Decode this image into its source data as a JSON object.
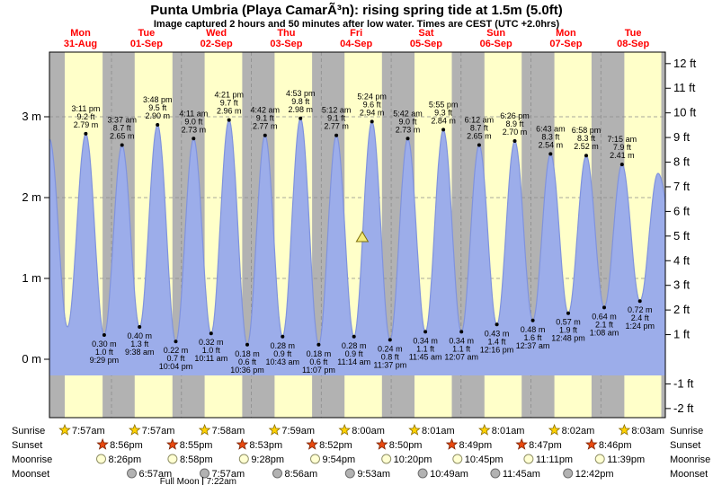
{
  "chart_data": {
    "type": "area",
    "title": "Punta Umbria (Playa CamarÃ³n): rising  spring tide at 1.5m (5.0ft)",
    "subtitle": "Image captured 2 hours and 50 minutes after low water. Times are CEST (UTC +2.0hrs)",
    "y_range_m": [
      -0.72,
      3.8
    ],
    "grid": "dashed",
    "days": [
      {
        "name": "Mon",
        "date": "31-Aug"
      },
      {
        "name": "Tue",
        "date": "01-Sep"
      },
      {
        "name": "Wed",
        "date": "02-Sep"
      },
      {
        "name": "Thu",
        "date": "03-Sep"
      },
      {
        "name": "Fri",
        "date": "04-Sep"
      },
      {
        "name": "Sat",
        "date": "05-Sep"
      },
      {
        "name": "Sun",
        "date": "06-Sep"
      },
      {
        "name": "Mon",
        "date": "07-Sep"
      },
      {
        "name": "Tue",
        "date": "08-Sep"
      }
    ],
    "y_left_ticks": [
      {
        "value": 3,
        "label": "3 m"
      },
      {
        "value": 2,
        "label": "2 m"
      },
      {
        "value": 1,
        "label": "1 m"
      },
      {
        "value": 0,
        "label": "0 m"
      }
    ],
    "y_right_ticks": [
      {
        "value": 12,
        "label": "12 ft"
      },
      {
        "value": 11,
        "label": "11 ft"
      },
      {
        "value": 10,
        "label": "10 ft"
      },
      {
        "value": 9,
        "label": "9 ft"
      },
      {
        "value": 8,
        "label": "8 ft"
      },
      {
        "value": 7,
        "label": "7 ft"
      },
      {
        "value": 6,
        "label": "6 ft"
      },
      {
        "value": 5,
        "label": "5 ft"
      },
      {
        "value": 4,
        "label": "4 ft"
      },
      {
        "value": 3,
        "label": "3 ft"
      },
      {
        "value": 2,
        "label": "2 ft"
      },
      {
        "value": 1,
        "label": "1 ft"
      },
      {
        "value": -1,
        "label": "-1 ft"
      },
      {
        "value": -2,
        "label": "-2 ft"
      }
    ],
    "tide_events": [
      {
        "type": "high",
        "day": 0,
        "time": "3:11 pm",
        "m": 2.79,
        "m_label": "2.79 m",
        "ft_label": "9.2 ft"
      },
      {
        "type": "low",
        "day": 0,
        "time": "9:29 pm",
        "m": 0.3,
        "m_label": "0.30 m",
        "ft_label": "1.0 ft"
      },
      {
        "type": "high",
        "day": 1,
        "time": "3:37 am",
        "m": 2.65,
        "m_label": "2.65 m",
        "ft_label": "8.7 ft"
      },
      {
        "type": "low",
        "day": 1,
        "time": "9:38 am",
        "m": 0.4,
        "m_label": "0.40 m",
        "ft_label": "1.3 ft"
      },
      {
        "type": "high",
        "day": 1,
        "time": "3:48 pm",
        "m": 2.9,
        "m_label": "2.90 m",
        "ft_label": "9.5 ft"
      },
      {
        "type": "low",
        "day": 1,
        "time": "10:04 pm",
        "m": 0.22,
        "m_label": "0.22 m",
        "ft_label": "0.7 ft"
      },
      {
        "type": "high",
        "day": 2,
        "time": "4:11 am",
        "m": 2.73,
        "m_label": "2.73 m",
        "ft_label": "9.0 ft"
      },
      {
        "type": "low",
        "day": 2,
        "time": "10:11 am",
        "m": 0.32,
        "m_label": "0.32 m",
        "ft_label": "1.0 ft"
      },
      {
        "type": "high",
        "day": 2,
        "time": "4:21 pm",
        "m": 2.96,
        "m_label": "2.96 m",
        "ft_label": "9.7 ft"
      },
      {
        "type": "low",
        "day": 2,
        "time": "10:36 pm",
        "m": 0.18,
        "m_label": "0.18 m",
        "ft_label": "0.6 ft"
      },
      {
        "type": "high",
        "day": 3,
        "time": "4:42 am",
        "m": 2.77,
        "m_label": "2.77 m",
        "ft_label": "9.1 ft"
      },
      {
        "type": "low",
        "day": 3,
        "time": "10:43 am",
        "m": 0.28,
        "m_label": "0.28 m",
        "ft_label": "0.9 ft"
      },
      {
        "type": "high",
        "day": 3,
        "time": "4:53 pm",
        "m": 2.98,
        "m_label": "2.98 m",
        "ft_label": "9.8 ft"
      },
      {
        "type": "low",
        "day": 3,
        "time": "11:07 pm",
        "m": 0.18,
        "m_label": "0.18 m",
        "ft_label": "0.6 ft"
      },
      {
        "type": "high",
        "day": 4,
        "time": "5:12 am",
        "m": 2.77,
        "m_label": "2.77 m",
        "ft_label": "9.1 ft"
      },
      {
        "type": "low",
        "day": 4,
        "time": "11:14 am",
        "m": 0.28,
        "m_label": "0.28 m",
        "ft_label": "0.9 ft"
      },
      {
        "type": "high",
        "day": 4,
        "time": "5:24 pm",
        "m": 2.94,
        "m_label": "2.94 m",
        "ft_label": "9.6 ft"
      },
      {
        "type": "low",
        "day": 4,
        "time": "11:37 pm",
        "m": 0.24,
        "m_label": "0.24 m",
        "ft_label": "0.8 ft"
      },
      {
        "type": "high",
        "day": 5,
        "time": "5:42 am",
        "m": 2.73,
        "m_label": "2.73 m",
        "ft_label": "9.0 ft"
      },
      {
        "type": "low",
        "day": 5,
        "time": "11:45 am",
        "m": 0.34,
        "m_label": "0.34 m",
        "ft_label": "1.1 ft"
      },
      {
        "type": "high",
        "day": 5,
        "time": "5:55 pm",
        "m": 2.84,
        "m_label": "2.84 m",
        "ft_label": "9.3 ft"
      },
      {
        "type": "low",
        "day": 6,
        "time": "12:07 am",
        "m": 0.34,
        "m_label": "0.34 m",
        "ft_label": "1.1 ft"
      },
      {
        "type": "high",
        "day": 6,
        "time": "6:12 am",
        "m": 2.65,
        "m_label": "2.65 m",
        "ft_label": "8.7 ft"
      },
      {
        "type": "low",
        "day": 6,
        "time": "12:16 pm",
        "m": 0.43,
        "m_label": "0.43 m",
        "ft_label": "1.4 ft"
      },
      {
        "type": "high",
        "day": 6,
        "time": "6:26 pm",
        "m": 2.7,
        "m_label": "2.70 m",
        "ft_label": "8.9 ft"
      },
      {
        "type": "low",
        "day": 7,
        "time": "12:37 am",
        "m": 0.48,
        "m_label": "0.48 m",
        "ft_label": "1.6 ft"
      },
      {
        "type": "high",
        "day": 7,
        "time": "6:43 am",
        "m": 2.54,
        "m_label": "2.54 m",
        "ft_label": "8.3 ft"
      },
      {
        "type": "low",
        "day": 7,
        "time": "12:48 pm",
        "m": 0.57,
        "m_label": "0.57 m",
        "ft_label": "1.9 ft"
      },
      {
        "type": "high",
        "day": 7,
        "time": "6:58 pm",
        "m": 2.52,
        "m_label": "2.52 m",
        "ft_label": "8.3 ft"
      },
      {
        "type": "low",
        "day": 8,
        "time": "1:08 am",
        "m": 0.64,
        "m_label": "0.64 m",
        "ft_label": "2.1 ft"
      },
      {
        "type": "high",
        "day": 8,
        "time": "7:15 am",
        "m": 2.41,
        "m_label": "2.41 m",
        "ft_label": "7.9 ft"
      },
      {
        "type": "low",
        "day": 8,
        "time": "1:24 pm",
        "m": 0.72,
        "m_label": "0.72 m",
        "ft_label": "2.4 ft"
      }
    ],
    "current_marker": {
      "shape": "triangle",
      "day": 4,
      "hour_of_day": 14.07,
      "height_m": 1.5
    }
  },
  "astro": {
    "rows": [
      {
        "id": "sunrise",
        "label": "Sunrise",
        "icon": "sunrise-star",
        "events": [
          {
            "day": 0,
            "time": "7:57am"
          },
          {
            "day": 1,
            "time": "7:57am"
          },
          {
            "day": 2,
            "time": "7:58am"
          },
          {
            "day": 3,
            "time": "7:59am"
          },
          {
            "day": 4,
            "time": "8:00am"
          },
          {
            "day": 5,
            "time": "8:01am"
          },
          {
            "day": 6,
            "time": "8:01am"
          },
          {
            "day": 7,
            "time": "8:02am"
          },
          {
            "day": 8,
            "time": "8:03am"
          }
        ]
      },
      {
        "id": "sunset",
        "label": "Sunset",
        "icon": "sunset-star",
        "events": [
          {
            "day": 0,
            "time": "8:56pm"
          },
          {
            "day": 1,
            "time": "8:55pm"
          },
          {
            "day": 2,
            "time": "8:53pm"
          },
          {
            "day": 3,
            "time": "8:52pm"
          },
          {
            "day": 4,
            "time": "8:50pm"
          },
          {
            "day": 5,
            "time": "8:49pm"
          },
          {
            "day": 6,
            "time": "8:47pm"
          },
          {
            "day": 7,
            "time": "8:46pm"
          }
        ]
      },
      {
        "id": "moonrise",
        "label": "Moonrise",
        "icon": "moon-disc",
        "events": [
          {
            "day": 0,
            "time": "8:26pm"
          },
          {
            "day": 1,
            "time": "8:58pm"
          },
          {
            "day": 2,
            "time": "9:28pm"
          },
          {
            "day": 3,
            "time": "9:54pm"
          },
          {
            "day": 4,
            "time": "10:20pm"
          },
          {
            "day": 5,
            "time": "10:45pm"
          },
          {
            "day": 6,
            "time": "11:11pm"
          },
          {
            "day": 7,
            "time": "11:39pm"
          }
        ]
      },
      {
        "id": "moonset",
        "label": "Moonset",
        "icon": "moon-disc-gray",
        "events": [
          {
            "day": 1,
            "time": "6:57am"
          },
          {
            "day": 2,
            "time": "7:57am"
          },
          {
            "day": 3,
            "time": "8:56am"
          },
          {
            "day": 4,
            "time": "9:53am"
          },
          {
            "day": 5,
            "time": "10:49am"
          },
          {
            "day": 6,
            "time": "11:45am"
          },
          {
            "day": 7,
            "time": "12:42pm"
          }
        ]
      }
    ],
    "full_moon": {
      "label": "Full Moon",
      "day": 2,
      "time": "7:22am"
    }
  },
  "colors": {
    "day_band": "#ffffc9",
    "night_band": "#b2b2b2",
    "tide_fill": "#9cadea",
    "tide_edge": "#8093dd",
    "day_label": "#ff0000",
    "sunrise_star": "#ffd200",
    "sunset_star": "#e8490f",
    "moonrise_disc": "#ffffd2",
    "moonset_disc": "#b2b2b2"
  }
}
